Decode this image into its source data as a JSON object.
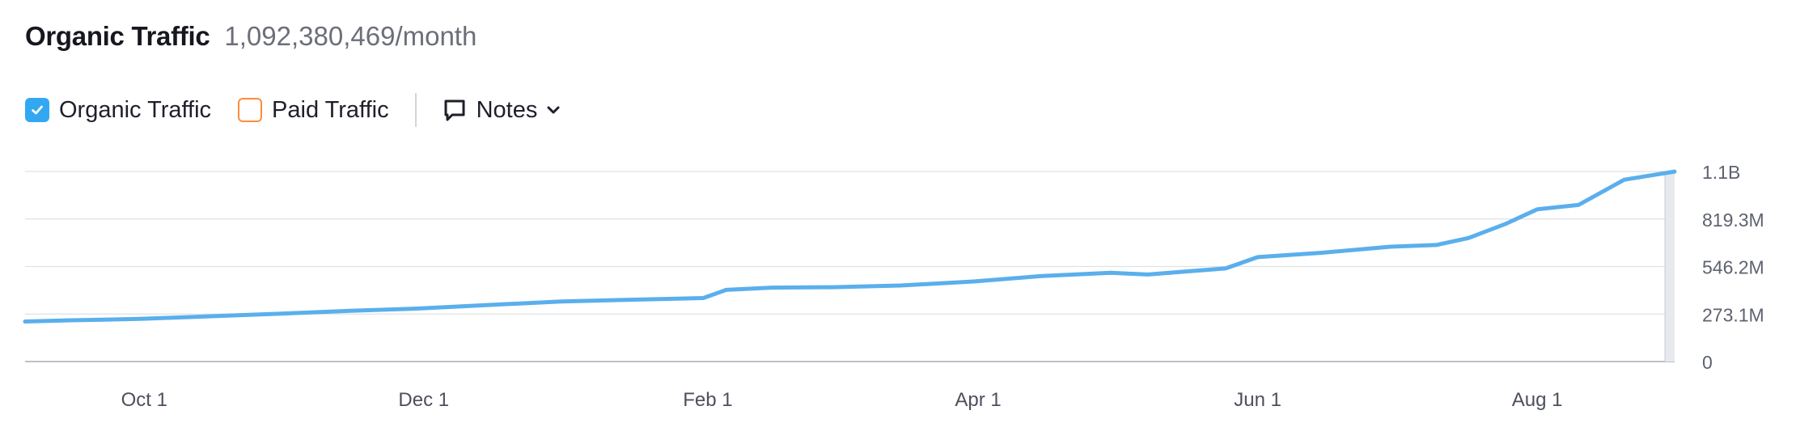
{
  "header": {
    "title": "Organic Traffic",
    "value": "1,092,380,469/month"
  },
  "legend": {
    "items": [
      {
        "label": "Organic Traffic",
        "checked": true,
        "color": "#32a8f2"
      },
      {
        "label": "Paid Traffic",
        "checked": false,
        "color": "#ff8c3b"
      }
    ],
    "notes_label": "Notes"
  },
  "chart_data": {
    "type": "line",
    "title": "",
    "xlabel": "",
    "ylabel": "",
    "x_tick_labels": [
      "Oct 1",
      "Dec 1",
      "Feb 1",
      "Apr 1",
      "Jun 1",
      "Aug 1"
    ],
    "x_tick_dates": [
      "2024-10-01",
      "2024-12-01",
      "2025-02-01",
      "2025-04-01",
      "2025-06-01",
      "2025-08-01"
    ],
    "x_range": [
      "2024-09-05",
      "2025-08-31"
    ],
    "y_tick_labels": [
      "0",
      "273.1M",
      "546.2M",
      "819.3M",
      "1.1B"
    ],
    "y_ticks": [
      0,
      273100000,
      546200000,
      819300000,
      1092400000
    ],
    "ylim": [
      0,
      1092400000
    ],
    "grid": true,
    "line_color": "#5aafec",
    "series": [
      {
        "name": "Organic Traffic",
        "x": [
          "2024-09-05",
          "2024-09-15",
          "2024-09-30",
          "2024-10-15",
          "2024-10-31",
          "2024-11-15",
          "2024-11-30",
          "2024-12-15",
          "2024-12-31",
          "2025-01-15",
          "2025-01-31",
          "2025-02-05",
          "2025-02-15",
          "2025-02-28",
          "2025-03-15",
          "2025-03-31",
          "2025-04-15",
          "2025-04-30",
          "2025-05-08",
          "2025-05-15",
          "2025-05-25",
          "2025-06-01",
          "2025-06-15",
          "2025-06-30",
          "2025-07-10",
          "2025-07-17",
          "2025-07-25",
          "2025-08-01",
          "2025-08-10",
          "2025-08-20",
          "2025-08-31"
        ],
        "y": [
          230000000,
          237000000,
          245000000,
          260000000,
          275000000,
          292000000,
          305000000,
          325000000,
          345000000,
          355000000,
          365000000,
          412000000,
          425000000,
          427000000,
          437000000,
          460000000,
          492000000,
          510000000,
          500000000,
          515000000,
          535000000,
          600000000,
          625000000,
          660000000,
          670000000,
          710000000,
          790000000,
          875000000,
          900000000,
          1045000000,
          1092000000
        ]
      }
    ]
  }
}
